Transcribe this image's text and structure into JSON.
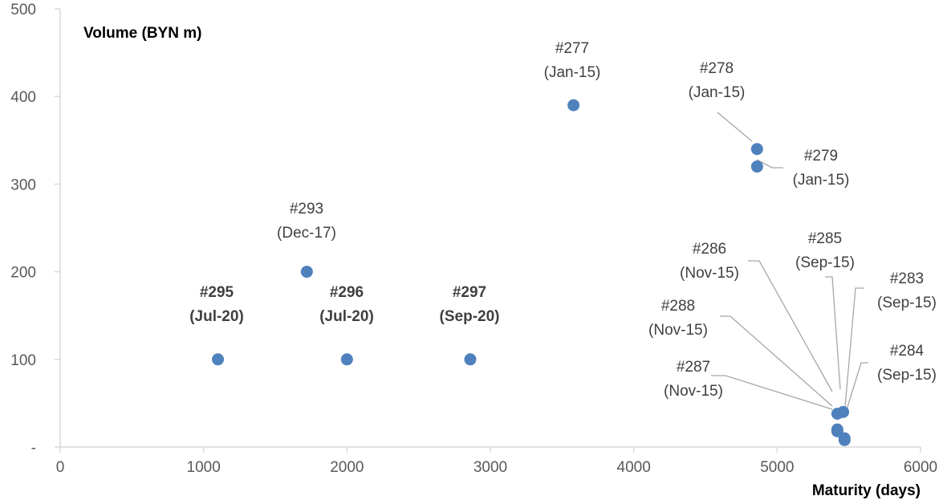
{
  "chart_data": {
    "type": "scatter",
    "title": "",
    "xlabel": "Maturity (days)",
    "ylabel": "Volume (BYN m)",
    "xlim": [
      0,
      6000
    ],
    "ylim": [
      0,
      500
    ],
    "x_ticks": [
      0,
      1000,
      2000,
      3000,
      4000,
      5000,
      6000
    ],
    "x_tick_labels": [
      "0",
      "1000",
      "2000",
      "3000",
      "4000",
      "5000",
      "6000"
    ],
    "y_ticks": [
      0,
      100,
      200,
      300,
      400,
      500
    ],
    "y_tick_labels": [
      "-",
      "100",
      "200",
      "300",
      "400",
      "500"
    ],
    "grid": false,
    "marker_color": "#4f81bd",
    "leader_line_color": "#a6a6a6",
    "axis_color": "#d9d9d9",
    "points": [
      {
        "id": "p277",
        "x": 3580,
        "y": 390,
        "label": [
          "#277",
          "(Jan-15)"
        ],
        "bold": false
      },
      {
        "id": "p278",
        "x": 4860,
        "y": 340,
        "label": [
          "#278",
          "(Jan-15)"
        ],
        "bold": false
      },
      {
        "id": "p279",
        "x": 4860,
        "y": 320,
        "label": [
          "#279",
          "(Jan-15)"
        ],
        "bold": false
      },
      {
        "id": "p293",
        "x": 1720,
        "y": 200,
        "label": [
          "#293",
          "(Dec-17)"
        ],
        "bold": false
      },
      {
        "id": "p295",
        "x": 1100,
        "y": 100,
        "label": [
          "#295",
          "(Jul-20)"
        ],
        "bold": true
      },
      {
        "id": "p296",
        "x": 2000,
        "y": 100,
        "label": [
          "#296",
          "(Jul-20)"
        ],
        "bold": true
      },
      {
        "id": "p297",
        "x": 2860,
        "y": 100,
        "label": [
          "#297",
          "(Sep-20)"
        ],
        "bold": true
      },
      {
        "id": "p286",
        "x": 5420,
        "y": 38,
        "label": [
          "#286",
          "(Nov-15)"
        ],
        "bold": false
      },
      {
        "id": "p285",
        "x": 5460,
        "y": 40,
        "label": [
          "#285",
          "(Sep-15)"
        ],
        "bold": false
      },
      {
        "id": "p288",
        "x": 5420,
        "y": 20,
        "label": [
          "#288",
          "(Nov-15)"
        ],
        "bold": false
      },
      {
        "id": "p287",
        "x": 5420,
        "y": 18,
        "label": [
          "#287",
          "(Nov-15)"
        ],
        "bold": false
      },
      {
        "id": "p283",
        "x": 5470,
        "y": 10,
        "label": [
          "#283",
          "(Sep-15)"
        ],
        "bold": false
      },
      {
        "id": "p284",
        "x": 5470,
        "y": 8,
        "label": [
          "#284",
          "(Sep-15)"
        ],
        "bold": false
      }
    ]
  }
}
